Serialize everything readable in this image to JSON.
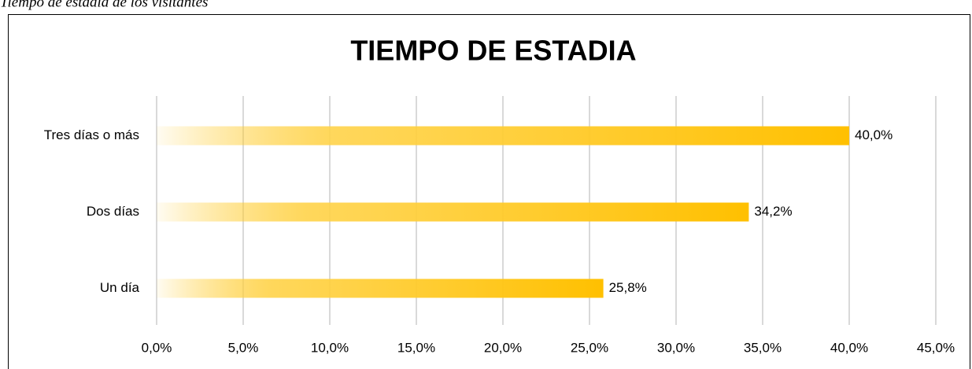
{
  "caption": "Tiempo de estadía de los visitantes",
  "chart_data": {
    "type": "hbar",
    "title": "TIEMPO DE ESTADIA",
    "categories": [
      "Tres días o más",
      "Dos días",
      "Un día"
    ],
    "values": [
      40.0,
      34.2,
      25.8
    ],
    "value_labels": [
      "40,0%",
      "34,2%",
      "25,8%"
    ],
    "color": "#ffc000",
    "xlim": [
      0,
      45
    ],
    "xticks": [
      {
        "value": 0,
        "label": "0,0%"
      },
      {
        "value": 5,
        "label": "5,0%"
      },
      {
        "value": 10,
        "label": "10,0%"
      },
      {
        "value": 15,
        "label": "15,0%"
      },
      {
        "value": 20,
        "label": "20,0%"
      },
      {
        "value": 25,
        "label": "25,0%"
      },
      {
        "value": 30,
        "label": "30,0%"
      },
      {
        "value": 35,
        "label": "35,0%"
      },
      {
        "value": 40,
        "label": "40,0%"
      },
      {
        "value": 45,
        "label": "45,0%"
      }
    ],
    "grid": true
  }
}
